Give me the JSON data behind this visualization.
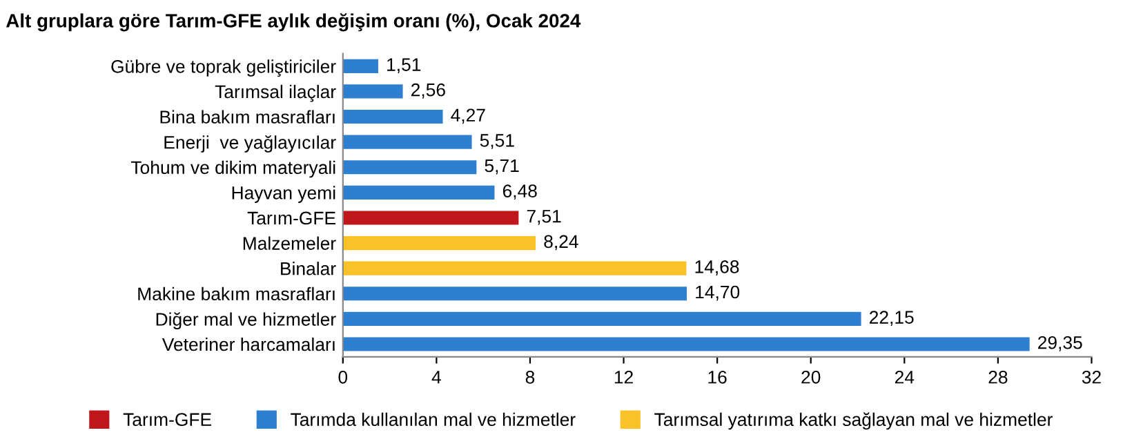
{
  "chart_data": {
    "type": "bar",
    "orientation": "horizontal",
    "title": "Alt gruplara göre Tarım-GFE aylık değişim oranı (%), Ocak 2024",
    "categories": [
      "Gübre ve toprak geliştiriciler",
      "Tarımsal ilaçlar",
      "Bina bakım masrafları",
      "Enerji  ve yağlayıcılar",
      "Tohum ve dikim materyali",
      "Hayvan yemi",
      "Tarım-GFE",
      "Malzemeler",
      "Binalar",
      "Makine bakım masrafları",
      "Diğer mal ve hizmetler",
      "Veteriner harcamaları"
    ],
    "series": [
      {
        "name": "Tarım-GFE",
        "color": "#c0171c",
        "values": [
          null,
          null,
          null,
          null,
          null,
          null,
          7.51,
          null,
          null,
          null,
          null,
          null
        ],
        "value_labels": [
          null,
          null,
          null,
          null,
          null,
          null,
          "7,51",
          null,
          null,
          null,
          null,
          null
        ]
      },
      {
        "name": "Tarımda kullanılan mal ve hizmetler",
        "color": "#2f7fd0",
        "values": [
          1.51,
          2.56,
          4.27,
          5.51,
          5.71,
          6.48,
          null,
          null,
          null,
          14.7,
          22.15,
          29.35
        ],
        "value_labels": [
          "1,51",
          "2,56",
          "4,27",
          "5,51",
          "5,71",
          "6,48",
          null,
          null,
          null,
          "14,70",
          "22,15",
          "29,35"
        ]
      },
      {
        "name": "Tarımsal yatırıma katkı sağlayan mal ve hizmetler",
        "color": "#f9c228",
        "values": [
          null,
          null,
          null,
          null,
          null,
          null,
          null,
          8.24,
          14.68,
          null,
          null,
          null
        ],
        "value_labels": [
          null,
          null,
          null,
          null,
          null,
          null,
          null,
          "8,24",
          "14,68",
          null,
          null,
          null
        ]
      }
    ],
    "xlim": [
      0,
      32
    ],
    "xticks": [
      0,
      4,
      8,
      12,
      16,
      20,
      24,
      28,
      32
    ],
    "grid": false,
    "legend": "bottom"
  }
}
